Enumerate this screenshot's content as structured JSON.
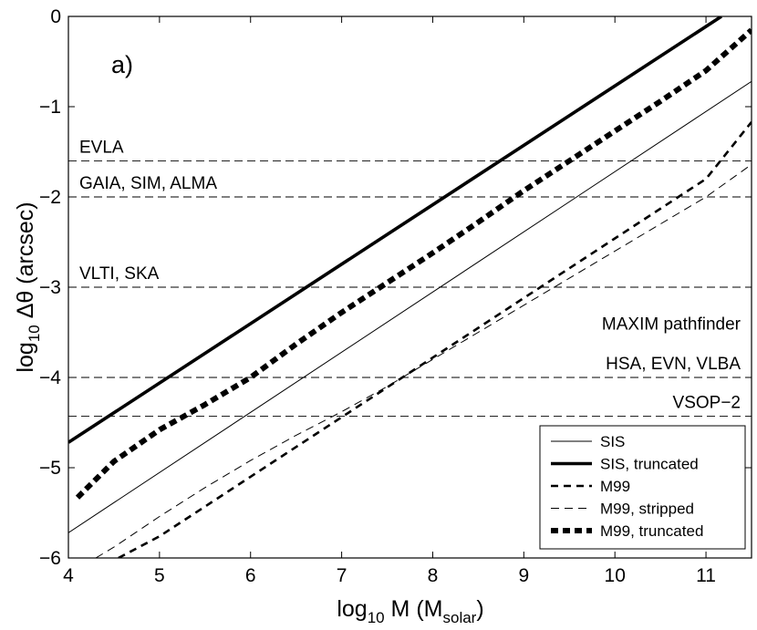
{
  "chart_data": {
    "type": "line",
    "panel_label": "a)",
    "xlabel": {
      "prefix": "log",
      "sub": "10",
      "main": " M (M",
      "sub2": "solar",
      "suffix": ")"
    },
    "ylabel": {
      "prefix": "log",
      "sub": "10",
      "main": " Δθ (arcsec)"
    },
    "xlim": [
      4,
      11.5
    ],
    "ylim": [
      -6,
      0
    ],
    "xticks": [
      4,
      5,
      6,
      7,
      8,
      9,
      10,
      11
    ],
    "yticks": [
      0,
      -1,
      -2,
      -3,
      -4,
      -5,
      -6
    ],
    "xtick_labels": [
      "4",
      "5",
      "6",
      "7",
      "8",
      "9",
      "10",
      "11"
    ],
    "ytick_labels": [
      "0",
      "−1",
      "−2",
      "−3",
      "−4",
      "−5",
      "−6"
    ],
    "reference_lines": [
      {
        "y": -1.6,
        "label": "EVLA",
        "label_align": "left"
      },
      {
        "y": -2.0,
        "label": "GAIA, SIM, ALMA",
        "label_align": "left"
      },
      {
        "y": -3.0,
        "label": "VLTI, SKA",
        "label_align": "left"
      },
      {
        "y": -4.0,
        "label": "HSA, EVN, VLBA",
        "label_align": "right"
      },
      {
        "y": -4.43,
        "label": "VSOP−2",
        "label_align": "right"
      }
    ],
    "extra_annotations": [
      {
        "label": "MAXIM pathfinder",
        "y": -3.47,
        "align": "right"
      }
    ],
    "series": [
      {
        "name": "SIS",
        "style": "thin-solid",
        "x": [
          4.0,
          11.5
        ],
        "y": [
          -5.72,
          -0.72
        ]
      },
      {
        "name": "SIS, truncated",
        "style": "thick-solid",
        "x": [
          4.0,
          11.17
        ],
        "y": [
          -4.72,
          0.0
        ]
      },
      {
        "name": "M99",
        "style": "medium-dashed",
        "x": [
          4.55,
          5.0,
          5.5,
          6.0,
          6.5,
          7.0,
          7.5,
          8.0,
          8.5,
          9.0,
          9.5,
          10.0,
          10.5,
          11.0,
          11.5
        ],
        "y": [
          -6.0,
          -5.76,
          -5.43,
          -5.1,
          -4.77,
          -4.44,
          -4.11,
          -3.78,
          -3.45,
          -3.12,
          -2.79,
          -2.46,
          -2.13,
          -1.8,
          -1.17
        ]
      },
      {
        "name": "M99, stripped",
        "style": "thin-dashed",
        "x": [
          4.3,
          4.5,
          5.0,
          5.5,
          6.0,
          6.5,
          7.0,
          7.5,
          8.0,
          8.5,
          9.0,
          9.5,
          10.0,
          10.5,
          11.0,
          11.5
        ],
        "y": [
          -6.0,
          -5.88,
          -5.54,
          -5.22,
          -4.92,
          -4.64,
          -4.38,
          -4.1,
          -3.8,
          -3.5,
          -3.2,
          -2.9,
          -2.6,
          -2.3,
          -2.0,
          -1.64
        ]
      },
      {
        "name": "M99, truncated",
        "style": "thick-dashed",
        "x": [
          4.1,
          4.5,
          5.0,
          5.5,
          6.0,
          6.5,
          7.0,
          7.5,
          8.0,
          8.5,
          9.0,
          9.5,
          10.0,
          10.5,
          11.0,
          11.5
        ],
        "y": [
          -5.33,
          -4.93,
          -4.58,
          -4.3,
          -4.0,
          -3.63,
          -3.28,
          -2.95,
          -2.62,
          -2.28,
          -1.93,
          -1.6,
          -1.27,
          -0.94,
          -0.6,
          -0.15
        ]
      }
    ]
  },
  "legend": {
    "items": [
      {
        "label": "SIS",
        "style": "thin-solid"
      },
      {
        "label": "SIS, truncated",
        "style": "thick-solid"
      },
      {
        "label": "M99",
        "style": "medium-dashed"
      },
      {
        "label": "M99, stripped",
        "style": "thin-dashed"
      },
      {
        "label": "M99, truncated",
        "style": "thick-dashed"
      }
    ]
  }
}
